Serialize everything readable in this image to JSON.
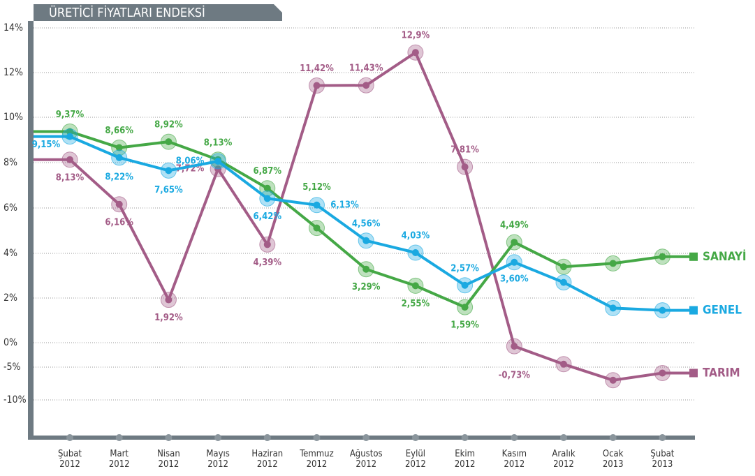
{
  "chart_data": {
    "type": "line",
    "title": "ÜRETİCİ FİYATLARI ENDEKSİ",
    "categories": [
      [
        "Şubat",
        "2012"
      ],
      [
        "Mart",
        "2012"
      ],
      [
        "Nisan",
        "2012"
      ],
      [
        "Mayıs",
        "2012"
      ],
      [
        "Haziran",
        "2012"
      ],
      [
        "Temmuz",
        "2012"
      ],
      [
        "Ağustos",
        "2012"
      ],
      [
        "Eylül",
        "2012"
      ],
      [
        "Ekim",
        "2012"
      ],
      [
        "Kasım",
        "2012"
      ],
      [
        "Aralık",
        "2012"
      ],
      [
        "Ocak",
        "2013"
      ],
      [
        "Şubat",
        "2013"
      ]
    ],
    "yticks": [
      {
        "value": 14,
        "label": "14%"
      },
      {
        "value": 12,
        "label": "12%"
      },
      {
        "value": 10,
        "label": "10%"
      },
      {
        "value": 8,
        "label": "8%"
      },
      {
        "value": 6,
        "label": "6%"
      },
      {
        "value": 4,
        "label": "4%"
      },
      {
        "value": 2,
        "label": "2%"
      },
      {
        "value": 0,
        "label": "0%"
      },
      {
        "value": -5,
        "label": "-5%"
      },
      {
        "value": -10,
        "label": "-10%"
      }
    ],
    "ylim": [
      -13,
      14
    ],
    "grid": true,
    "series": [
      {
        "name": "TARIM",
        "color": "#a35c87",
        "values": [
          8.13,
          6.16,
          1.92,
          7.72,
          4.39,
          11.42,
          11.43,
          12.9,
          7.81,
          -0.73,
          -4.4,
          -7.0,
          -5.9
        ],
        "value_labels": [
          "8,13%",
          "6,16%",
          "1,92%",
          "7,72%",
          "4,39%",
          "11,42%",
          "11,43%",
          "12,9%",
          "7,81%",
          "-0,73%",
          null,
          null,
          null
        ]
      },
      {
        "name": "SANAYİ",
        "color": "#45a846",
        "values": [
          9.37,
          8.66,
          8.92,
          8.13,
          6.87,
          5.12,
          3.29,
          2.55,
          1.59,
          4.49,
          3.4,
          3.55,
          3.85
        ],
        "value_labels": [
          "9,37%",
          "8,66%",
          "8,92%",
          "8,13%",
          "6,87%",
          "5,12%",
          "3,29%",
          "2,55%",
          "1,59%",
          "4,49%",
          null,
          null,
          null
        ]
      },
      {
        "name": "GENEL",
        "color": "#1aa9e1",
        "values": [
          9.15,
          8.22,
          7.65,
          8.06,
          6.42,
          6.13,
          4.56,
          4.03,
          2.57,
          3.6,
          2.7,
          1.55,
          1.45
        ],
        "value_labels": [
          "9,15%",
          "8,22%",
          "7,65%",
          "8,06%",
          "6,42%",
          "6,13%",
          "4,56%",
          "4,03%",
          "2,57%",
          "3,60%",
          null,
          null,
          null
        ]
      }
    ]
  }
}
